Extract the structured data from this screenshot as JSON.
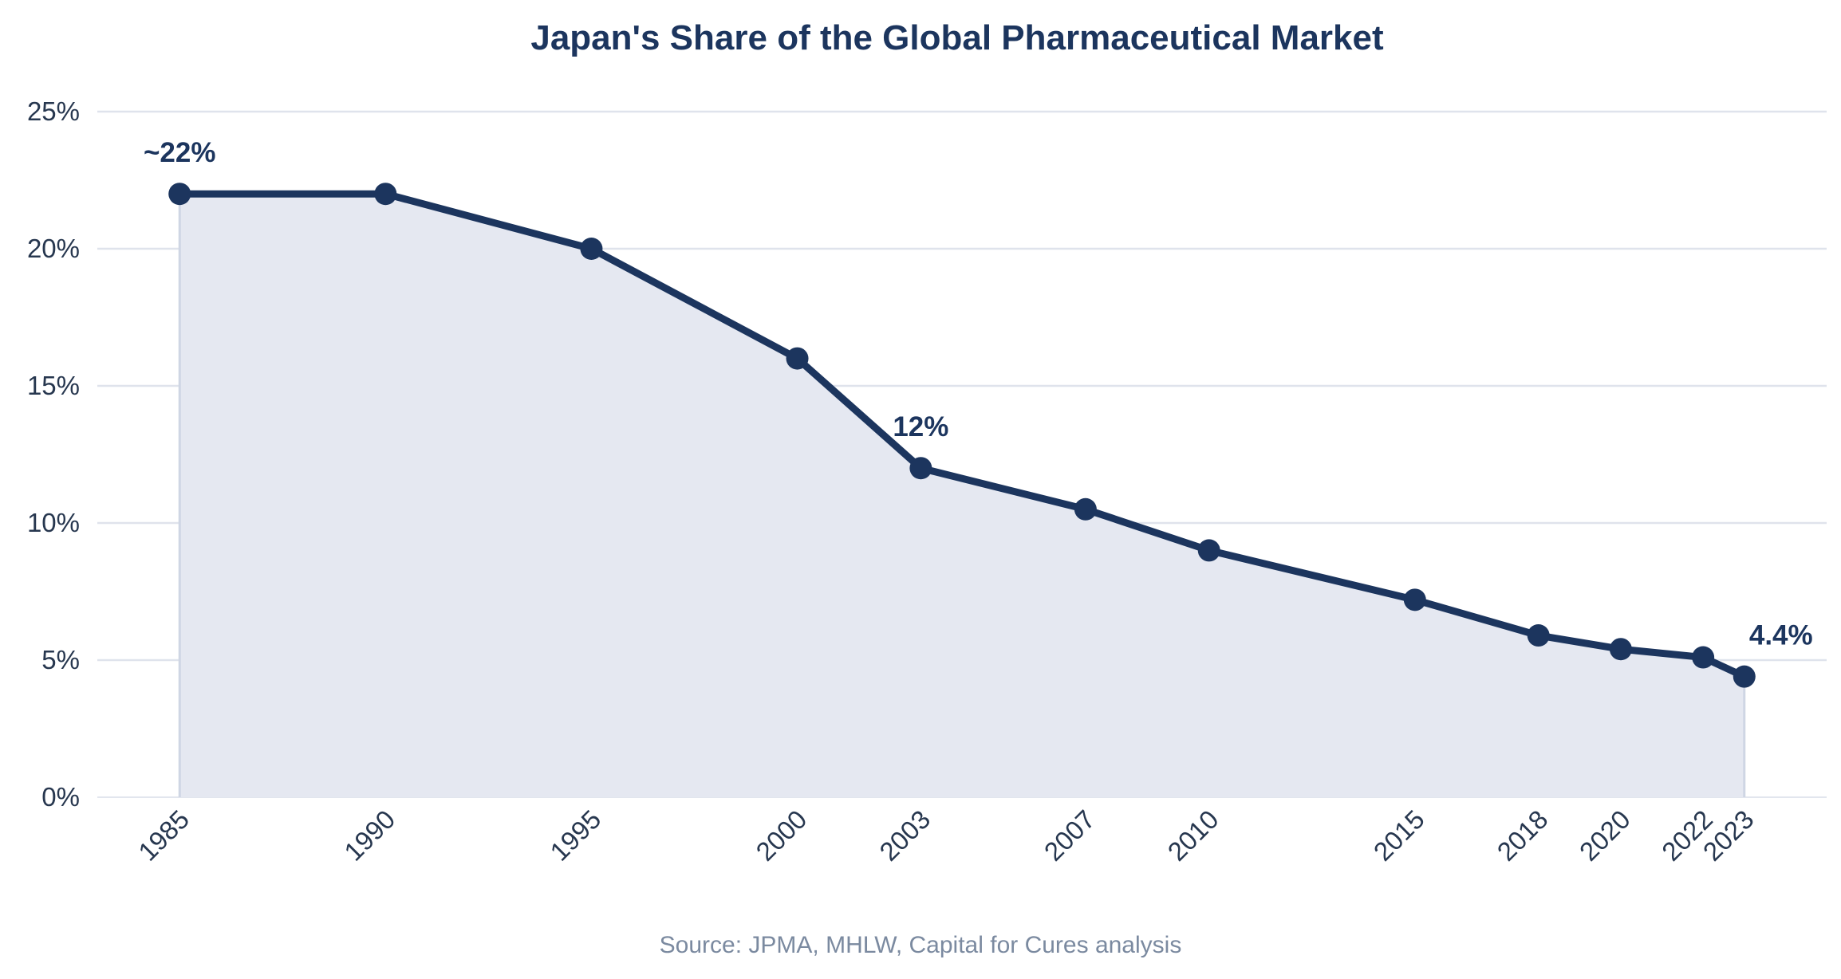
{
  "colors": {
    "line": "#1c355e",
    "area": "#e5e8f1",
    "grid": "#dfe3ec",
    "axis": "#e2e6ee",
    "tick_text": "#27374f",
    "title": "#1c355e",
    "source": "#7b8aa0"
  },
  "chart_data": {
    "type": "line",
    "title": "Japan's Share of the Global Pharmaceutical Market",
    "xlabel": "",
    "ylabel": "",
    "x": [
      1985,
      1990,
      1995,
      2000,
      2003,
      2007,
      2010,
      2015,
      2018,
      2020,
      2022,
      2023
    ],
    "x_tick_labels": [
      "1985",
      "1990",
      "1995",
      "2000",
      "2003",
      "2007",
      "2010",
      "2015",
      "2018",
      "2020",
      "2022",
      "2023"
    ],
    "series": [
      {
        "name": "Japan's share",
        "values": [
          22,
          22,
          20,
          16,
          12,
          10.5,
          9,
          7.2,
          5.9,
          5.4,
          5.1,
          4.4
        ]
      }
    ],
    "ylim": [
      0,
      25
    ],
    "y_ticks": [
      0,
      5,
      10,
      15,
      20,
      25
    ],
    "y_tick_labels": [
      "0%",
      "5%",
      "10%",
      "15%",
      "20%",
      "25%"
    ],
    "xlim": [
      1983,
      2025
    ],
    "grid": true,
    "annotations": [
      {
        "x": 1985,
        "value": 22,
        "text": "~22%"
      },
      {
        "x": 2003,
        "value": 12,
        "text": "12%"
      },
      {
        "x": 2023,
        "value": 4.4,
        "text": "4.4%"
      }
    ],
    "source": "Source: JPMA, MHLW, Capital for Cures analysis"
  }
}
